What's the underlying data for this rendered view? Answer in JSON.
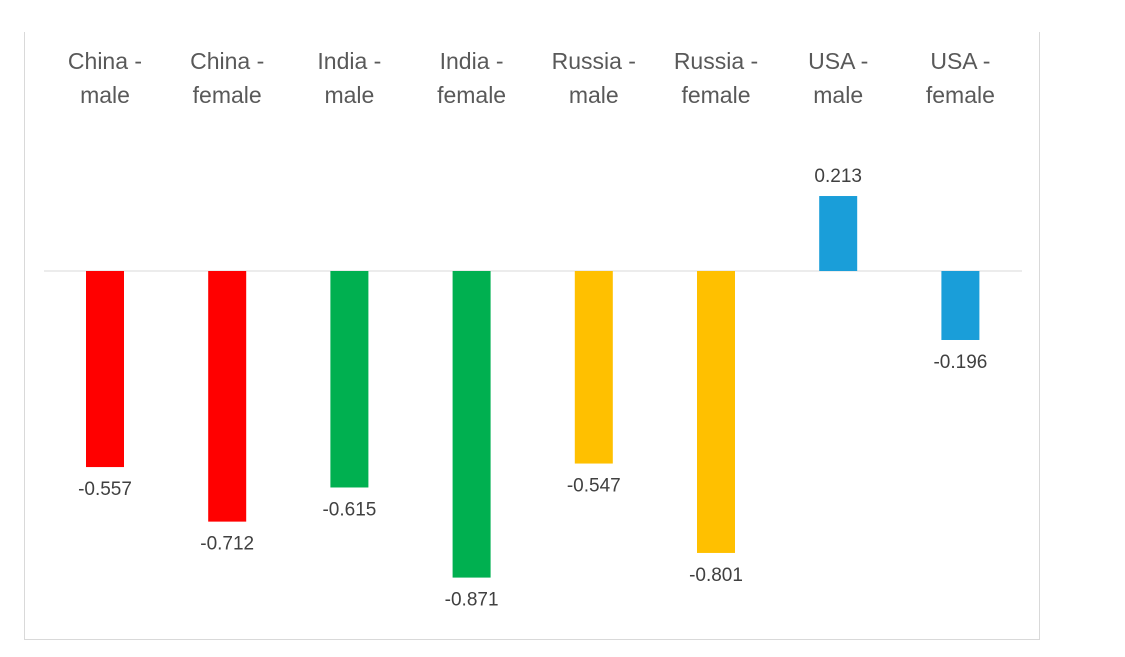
{
  "chart_data": {
    "type": "bar",
    "categories": [
      [
        "China -",
        "male"
      ],
      [
        "China -",
        "female"
      ],
      [
        "India -",
        "male"
      ],
      [
        "India -",
        "female"
      ],
      [
        "Russia -",
        "male"
      ],
      [
        "Russia -",
        "female"
      ],
      [
        "USA -",
        "male"
      ],
      [
        "USA -",
        "female"
      ]
    ],
    "values": [
      -0.557,
      -0.712,
      -0.615,
      -0.871,
      -0.547,
      -0.801,
      0.213,
      -0.196
    ],
    "value_labels": [
      "-0.557",
      "-0.712",
      "-0.615",
      "-0.871",
      "-0.547",
      "-0.801",
      "0.213",
      "-0.196"
    ],
    "colors": [
      "#ff0000",
      "#ff0000",
      "#00b050",
      "#00b050",
      "#ffc000",
      "#ffc000",
      "#1a9ed9",
      "#1a9ed9"
    ],
    "title": "",
    "xlabel": "",
    "ylabel": "",
    "category_labels_position": "top",
    "grid": false,
    "legend": "none"
  }
}
